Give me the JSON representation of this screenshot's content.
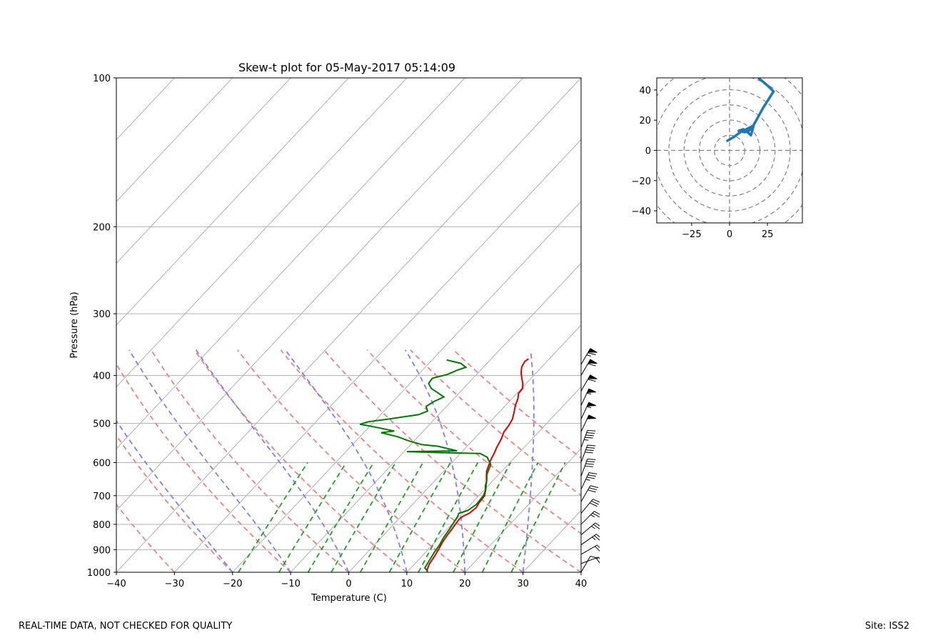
{
  "footer": {
    "disclaimer": "REAL-TIME DATA, NOT CHECKED FOR QUALITY",
    "site": "Site: ISS2"
  },
  "colors": {
    "temperature": "#e00000",
    "dewpoint": "#007a00",
    "isotherm": "#b0b0b0",
    "dry_adiabat": "#f08080",
    "moist_adiabat": "#7f7ff0",
    "mixing_ratio": "#22a022",
    "hodograph": "#1f77b4",
    "barb": "#000000"
  },
  "chart_data": [
    {
      "type": "skew-t",
      "title": "Skew-t plot for 05-May-2017 05:14:09",
      "xlabel": "Temperature (C)",
      "ylabel": "Pressure (hPa)",
      "xlim": [
        -40,
        40
      ],
      "ylim": [
        1000,
        100
      ],
      "y_scale": "log",
      "x_ticks": [
        "−40",
        "−30",
        "−20",
        "−10",
        "0",
        "10",
        "20",
        "30",
        "40"
      ],
      "y_ticks": [
        "100",
        "200",
        "300",
        "400",
        "500",
        "600",
        "700",
        "800",
        "900",
        "1000"
      ],
      "grid": true,
      "series": [
        {
          "key": "temperature",
          "points": [
            [
              13.5,
              1000
            ],
            [
              13.0,
              985
            ],
            [
              12.5,
              960
            ],
            [
              12.2,
              930
            ],
            [
              11.8,
              900
            ],
            [
              11.3,
              870
            ],
            [
              11.0,
              845
            ],
            [
              10.8,
              820
            ],
            [
              10.6,
              800
            ],
            [
              10.4,
              780
            ],
            [
              10.6,
              770
            ],
            [
              11.2,
              760
            ],
            [
              11.5,
              740
            ],
            [
              11.2,
              725
            ],
            [
              11.0,
              700
            ],
            [
              10.4,
              685
            ],
            [
              9.6,
              670
            ],
            [
              9.0,
              655
            ],
            [
              8.2,
              640
            ],
            [
              7.4,
              625
            ],
            [
              6.7,
              605
            ],
            [
              6.2,
              590
            ],
            [
              5.8,
              575
            ],
            [
              5.3,
              560
            ],
            [
              4.9,
              545
            ],
            [
              4.6,
              535
            ],
            [
              4.0,
              520
            ],
            [
              3.8,
              505
            ],
            [
              3.4,
              490
            ],
            [
              2.6,
              475
            ],
            [
              1.7,
              460
            ],
            [
              1.0,
              445
            ],
            [
              0.3,
              435
            ],
            [
              0.2,
              425
            ],
            [
              -0.6,
              415
            ],
            [
              -1.6,
              405
            ],
            [
              -2.6,
              395
            ],
            [
              -3.4,
              385
            ],
            [
              -3.8,
              375
            ],
            [
              -3.6,
              370
            ]
          ]
        },
        {
          "key": "dewpoint",
          "points": [
            [
              13.4,
              995
            ],
            [
              12.4,
              980
            ],
            [
              12.0,
              950
            ],
            [
              11.5,
              910
            ],
            [
              11.2,
              880
            ],
            [
              10.7,
              850
            ],
            [
              10.4,
              820
            ],
            [
              10.0,
              790
            ],
            [
              9.7,
              770
            ],
            [
              9.4,
              760
            ],
            [
              10.5,
              750
            ],
            [
              11.0,
              730
            ],
            [
              10.8,
              700
            ],
            [
              10.2,
              680
            ],
            [
              9.5,
              665
            ],
            [
              8.8,
              650
            ],
            [
              8.0,
              635
            ],
            [
              7.5,
              620
            ],
            [
              7.0,
              605
            ],
            [
              5.2,
              585
            ],
            [
              3.4,
              575
            ],
            [
              -3.2,
              573
            ],
            [
              -9.5,
              570
            ],
            [
              -1.0,
              568
            ],
            [
              -3.0,
              562
            ],
            [
              -5.0,
              556
            ],
            [
              -8.0,
              552
            ],
            [
              -11.0,
              542
            ],
            [
              -13.5,
              532
            ],
            [
              -17.0,
              522
            ],
            [
              -15.0,
              518
            ],
            [
              -17.5,
              512
            ],
            [
              -20.0,
              506
            ],
            [
              -22.0,
              502
            ],
            [
              -21.0,
              496
            ],
            [
              -18.0,
              490
            ],
            [
              -13.5,
              480
            ],
            [
              -12.5,
              472
            ],
            [
              -13.5,
              462
            ],
            [
              -13.0,
              452
            ],
            [
              -12.0,
              442
            ],
            [
              -14.0,
              432
            ],
            [
              -15.5,
              425
            ],
            [
              -16.8,
              415
            ],
            [
              -17.0,
              405
            ],
            [
              -15.0,
              398
            ],
            [
              -14.0,
              390
            ],
            [
              -13.0,
              385
            ],
            [
              -14.5,
              378
            ],
            [
              -17.5,
              372
            ]
          ]
        }
      ],
      "isotherms_c": [
        -130,
        -120,
        -110,
        -100,
        -90,
        -80,
        -70,
        -60,
        -50,
        -40,
        -30,
        -20,
        -10,
        0,
        10,
        20,
        30,
        40
      ],
      "dry_adiabats_c": [
        -30,
        -20,
        -10,
        0,
        10,
        20,
        30,
        40,
        50,
        60,
        70
      ],
      "moist_adiabats_c": [
        -20,
        -10,
        0,
        10,
        20,
        30,
        40
      ],
      "mixing_ratio_base_c": [
        -19,
        -12,
        -7,
        -3,
        2,
        7,
        12,
        18,
        23,
        28
      ],
      "wind_barbs": [
        {
          "p": 1000,
          "speed_kt": 10,
          "dir_deg": 30
        },
        {
          "p": 960,
          "speed_kt": 20,
          "dir_deg": 70
        },
        {
          "p": 920,
          "speed_kt": 20,
          "dir_deg": 60
        },
        {
          "p": 880,
          "speed_kt": 25,
          "dir_deg": 55
        },
        {
          "p": 840,
          "speed_kt": 25,
          "dir_deg": 50
        },
        {
          "p": 800,
          "speed_kt": 25,
          "dir_deg": 45
        },
        {
          "p": 760,
          "speed_kt": 30,
          "dir_deg": 40
        },
        {
          "p": 720,
          "speed_kt": 30,
          "dir_deg": 30
        },
        {
          "p": 680,
          "speed_kt": 35,
          "dir_deg": 25
        },
        {
          "p": 640,
          "speed_kt": 40,
          "dir_deg": 20
        },
        {
          "p": 600,
          "speed_kt": 40,
          "dir_deg": 20
        },
        {
          "p": 560,
          "speed_kt": 45,
          "dir_deg": 20
        },
        {
          "p": 520,
          "speed_kt": 50,
          "dir_deg": 25
        },
        {
          "p": 490,
          "speed_kt": 55,
          "dir_deg": 25
        },
        {
          "p": 460,
          "speed_kt": 55,
          "dir_deg": 25
        },
        {
          "p": 430,
          "speed_kt": 60,
          "dir_deg": 30
        },
        {
          "p": 400,
          "speed_kt": 60,
          "dir_deg": 30
        },
        {
          "p": 380,
          "speed_kt": 65,
          "dir_deg": 30
        }
      ]
    },
    {
      "type": "hodograph",
      "xlim": [
        -48,
        48
      ],
      "ylim": [
        -48,
        48
      ],
      "x_ticks": [
        -25,
        0,
        25
      ],
      "y_ticks": [
        -40,
        -20,
        0,
        20,
        40
      ],
      "x_tick_labels": [
        "−25",
        "0",
        "25"
      ],
      "y_tick_labels": [
        "−40",
        "−20",
        "0",
        "20",
        "40"
      ],
      "rings": [
        10,
        20,
        30,
        40,
        50,
        60
      ],
      "points": [
        [
          -2,
          6
        ],
        [
          3,
          9
        ],
        [
          7,
          12
        ],
        [
          11,
          14
        ],
        [
          15,
          16
        ],
        [
          13,
          13
        ],
        [
          10,
          12
        ],
        [
          6,
          13
        ],
        [
          9,
          14
        ],
        [
          12,
          12
        ],
        [
          14,
          10
        ],
        [
          15,
          13
        ],
        [
          16,
          17
        ],
        [
          22,
          28
        ],
        [
          29,
          39
        ],
        [
          25,
          43
        ],
        [
          19,
          48
        ]
      ]
    }
  ]
}
